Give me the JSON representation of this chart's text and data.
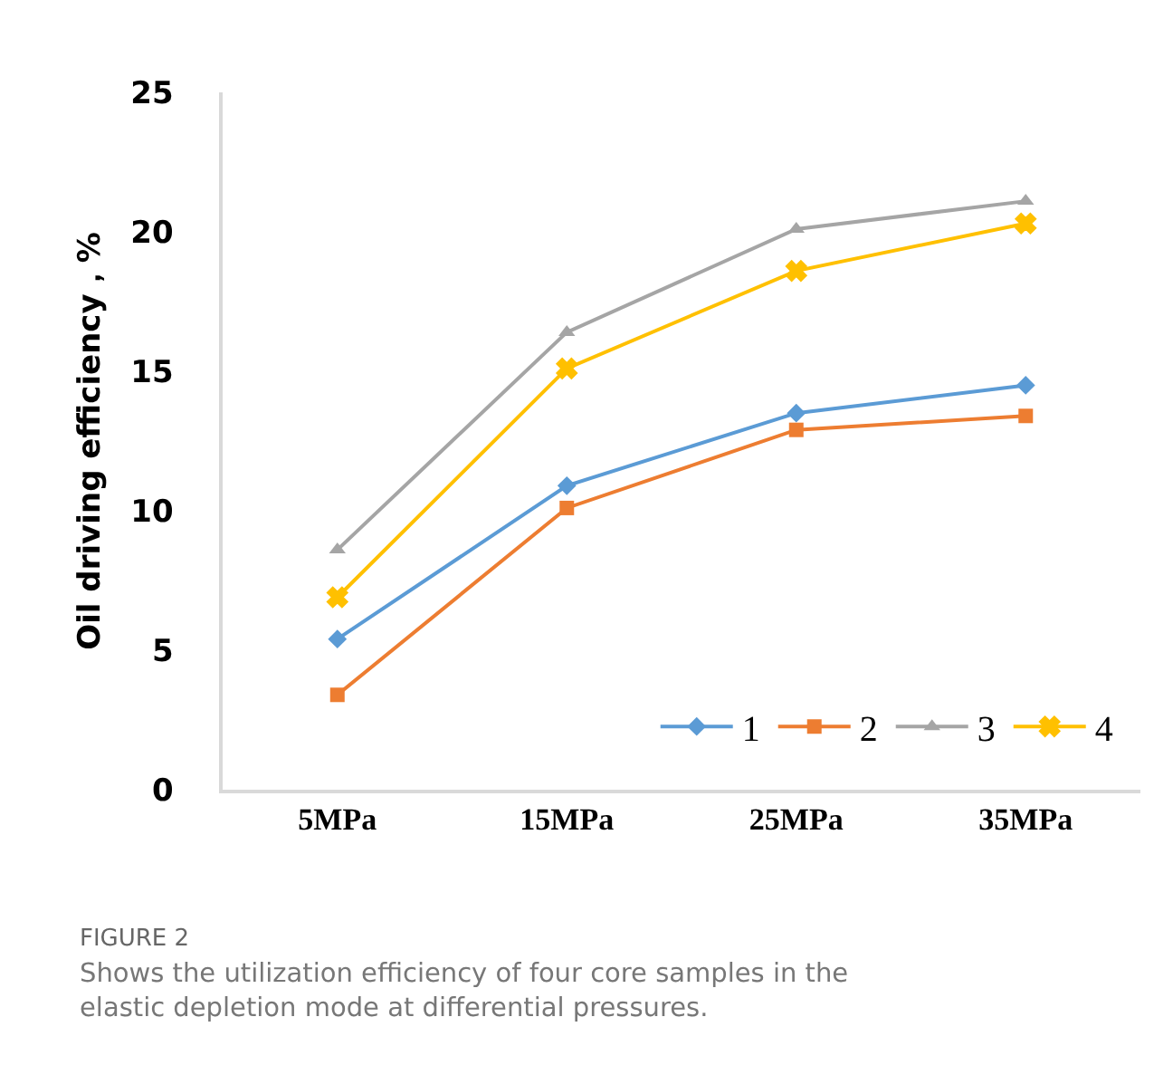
{
  "chart_data": {
    "type": "line",
    "ylabel": "Oil driving efficiency，%",
    "categories": [
      "5MPa",
      "15MPa",
      "25MPa",
      "35MPa"
    ],
    "series": [
      {
        "name": "1",
        "color": "#5b9bd5",
        "marker": "diamond",
        "values": [
          5.4,
          10.9,
          13.5,
          14.5
        ]
      },
      {
        "name": "2",
        "color": "#ed7d31",
        "marker": "square",
        "values": [
          3.4,
          10.1,
          12.9,
          13.4
        ]
      },
      {
        "name": "3",
        "color": "#a5a5a5",
        "marker": "triangle",
        "values": [
          8.6,
          16.4,
          20.1,
          21.1
        ]
      },
      {
        "name": "4",
        "color": "#ffc000",
        "marker": "cross",
        "values": [
          6.9,
          15.1,
          18.6,
          20.3
        ]
      }
    ],
    "ylim": [
      0,
      25
    ],
    "yticks": [
      0,
      5,
      10,
      15,
      20,
      25
    ],
    "grid": false,
    "legend": "bottom right",
    "annotations": [
      "FIGURE 2",
      "Shows the utilization efficiency of four core samples in the elastic depletion mode at differential pressures."
    ]
  }
}
